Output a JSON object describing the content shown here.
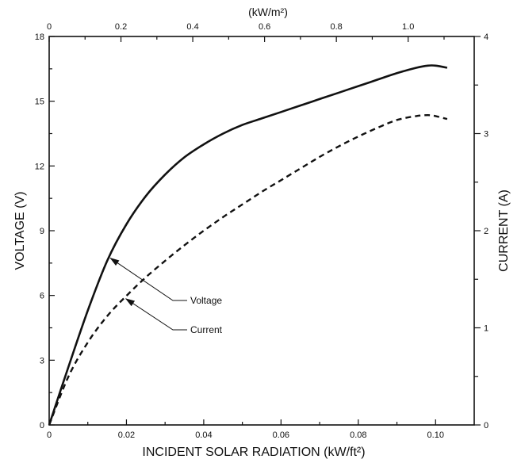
{
  "chart_data": {
    "type": "line",
    "title": "",
    "xlabel": "INCIDENT SOLAR RADIATION (kW/ft²)",
    "ylabel_left": "VOLTAGE (V)",
    "ylabel_right": "CURRENT (A)",
    "xlabel_top": "(kW/m²)",
    "xlim": [
      0,
      0.11
    ],
    "ylim_left": [
      0,
      18
    ],
    "ylim_right": [
      0,
      4
    ],
    "xlim_top": [
      0,
      1.184
    ],
    "x_ticks": [
      {
        "value": 0,
        "label": "0"
      },
      {
        "value": 0.02,
        "label": "0.02"
      },
      {
        "value": 0.04,
        "label": "0.04"
      },
      {
        "value": 0.06,
        "label": "0.06"
      },
      {
        "value": 0.08,
        "label": "0.08"
      },
      {
        "value": 0.1,
        "label": "0.10"
      }
    ],
    "x_top_ticks": [
      {
        "value": 0,
        "label": "0"
      },
      {
        "value": 0.2,
        "label": "0.2"
      },
      {
        "value": 0.4,
        "label": "0.4"
      },
      {
        "value": 0.6,
        "label": "0.6"
      },
      {
        "value": 0.8,
        "label": "0.8"
      },
      {
        "value": 1.0,
        "label": "1.0"
      }
    ],
    "y_left_ticks": [
      {
        "value": 0,
        "label": "0"
      },
      {
        "value": 3,
        "label": "3"
      },
      {
        "value": 6,
        "label": "6"
      },
      {
        "value": 9,
        "label": "9"
      },
      {
        "value": 12,
        "label": "12"
      },
      {
        "value": 15,
        "label": "15"
      },
      {
        "value": 18,
        "label": "18"
      }
    ],
    "y_right_ticks": [
      {
        "value": 0,
        "label": "0"
      },
      {
        "value": 1,
        "label": "1"
      },
      {
        "value": 2,
        "label": "2"
      },
      {
        "value": 3,
        "label": "3"
      },
      {
        "value": 4,
        "label": "4"
      }
    ],
    "grid": false,
    "series": [
      {
        "name": "Voltage",
        "axis": "left",
        "style": "solid",
        "x": [
          0,
          0.005,
          0.01,
          0.015,
          0.02,
          0.025,
          0.03,
          0.035,
          0.04,
          0.045,
          0.05,
          0.055,
          0.06,
          0.065,
          0.07,
          0.075,
          0.08,
          0.085,
          0.09,
          0.095,
          0.098,
          0.1,
          0.103
        ],
        "y": [
          0,
          2.7,
          5.3,
          7.6,
          9.3,
          10.6,
          11.6,
          12.4,
          13.0,
          13.5,
          13.9,
          14.2,
          14.5,
          14.8,
          15.1,
          15.4,
          15.7,
          16.0,
          16.3,
          16.55,
          16.65,
          16.65,
          16.55
        ]
      },
      {
        "name": "Current",
        "axis": "right",
        "style": "dashed",
        "x": [
          0,
          0.005,
          0.01,
          0.015,
          0.02,
          0.025,
          0.03,
          0.035,
          0.04,
          0.045,
          0.05,
          0.055,
          0.06,
          0.065,
          0.07,
          0.075,
          0.08,
          0.085,
          0.09,
          0.095,
          0.098,
          0.1,
          0.103
        ],
        "y": [
          0,
          0.5,
          0.85,
          1.12,
          1.33,
          1.52,
          1.69,
          1.85,
          2.0,
          2.14,
          2.27,
          2.4,
          2.52,
          2.64,
          2.76,
          2.87,
          2.97,
          3.06,
          3.14,
          3.18,
          3.19,
          3.18,
          3.15
        ]
      }
    ],
    "annotations": [
      {
        "text": "Voltage",
        "target_series": "Voltage",
        "target_x": 0.0155
      },
      {
        "text": "Current",
        "target_series": "Current",
        "target_x": 0.0195
      }
    ]
  }
}
